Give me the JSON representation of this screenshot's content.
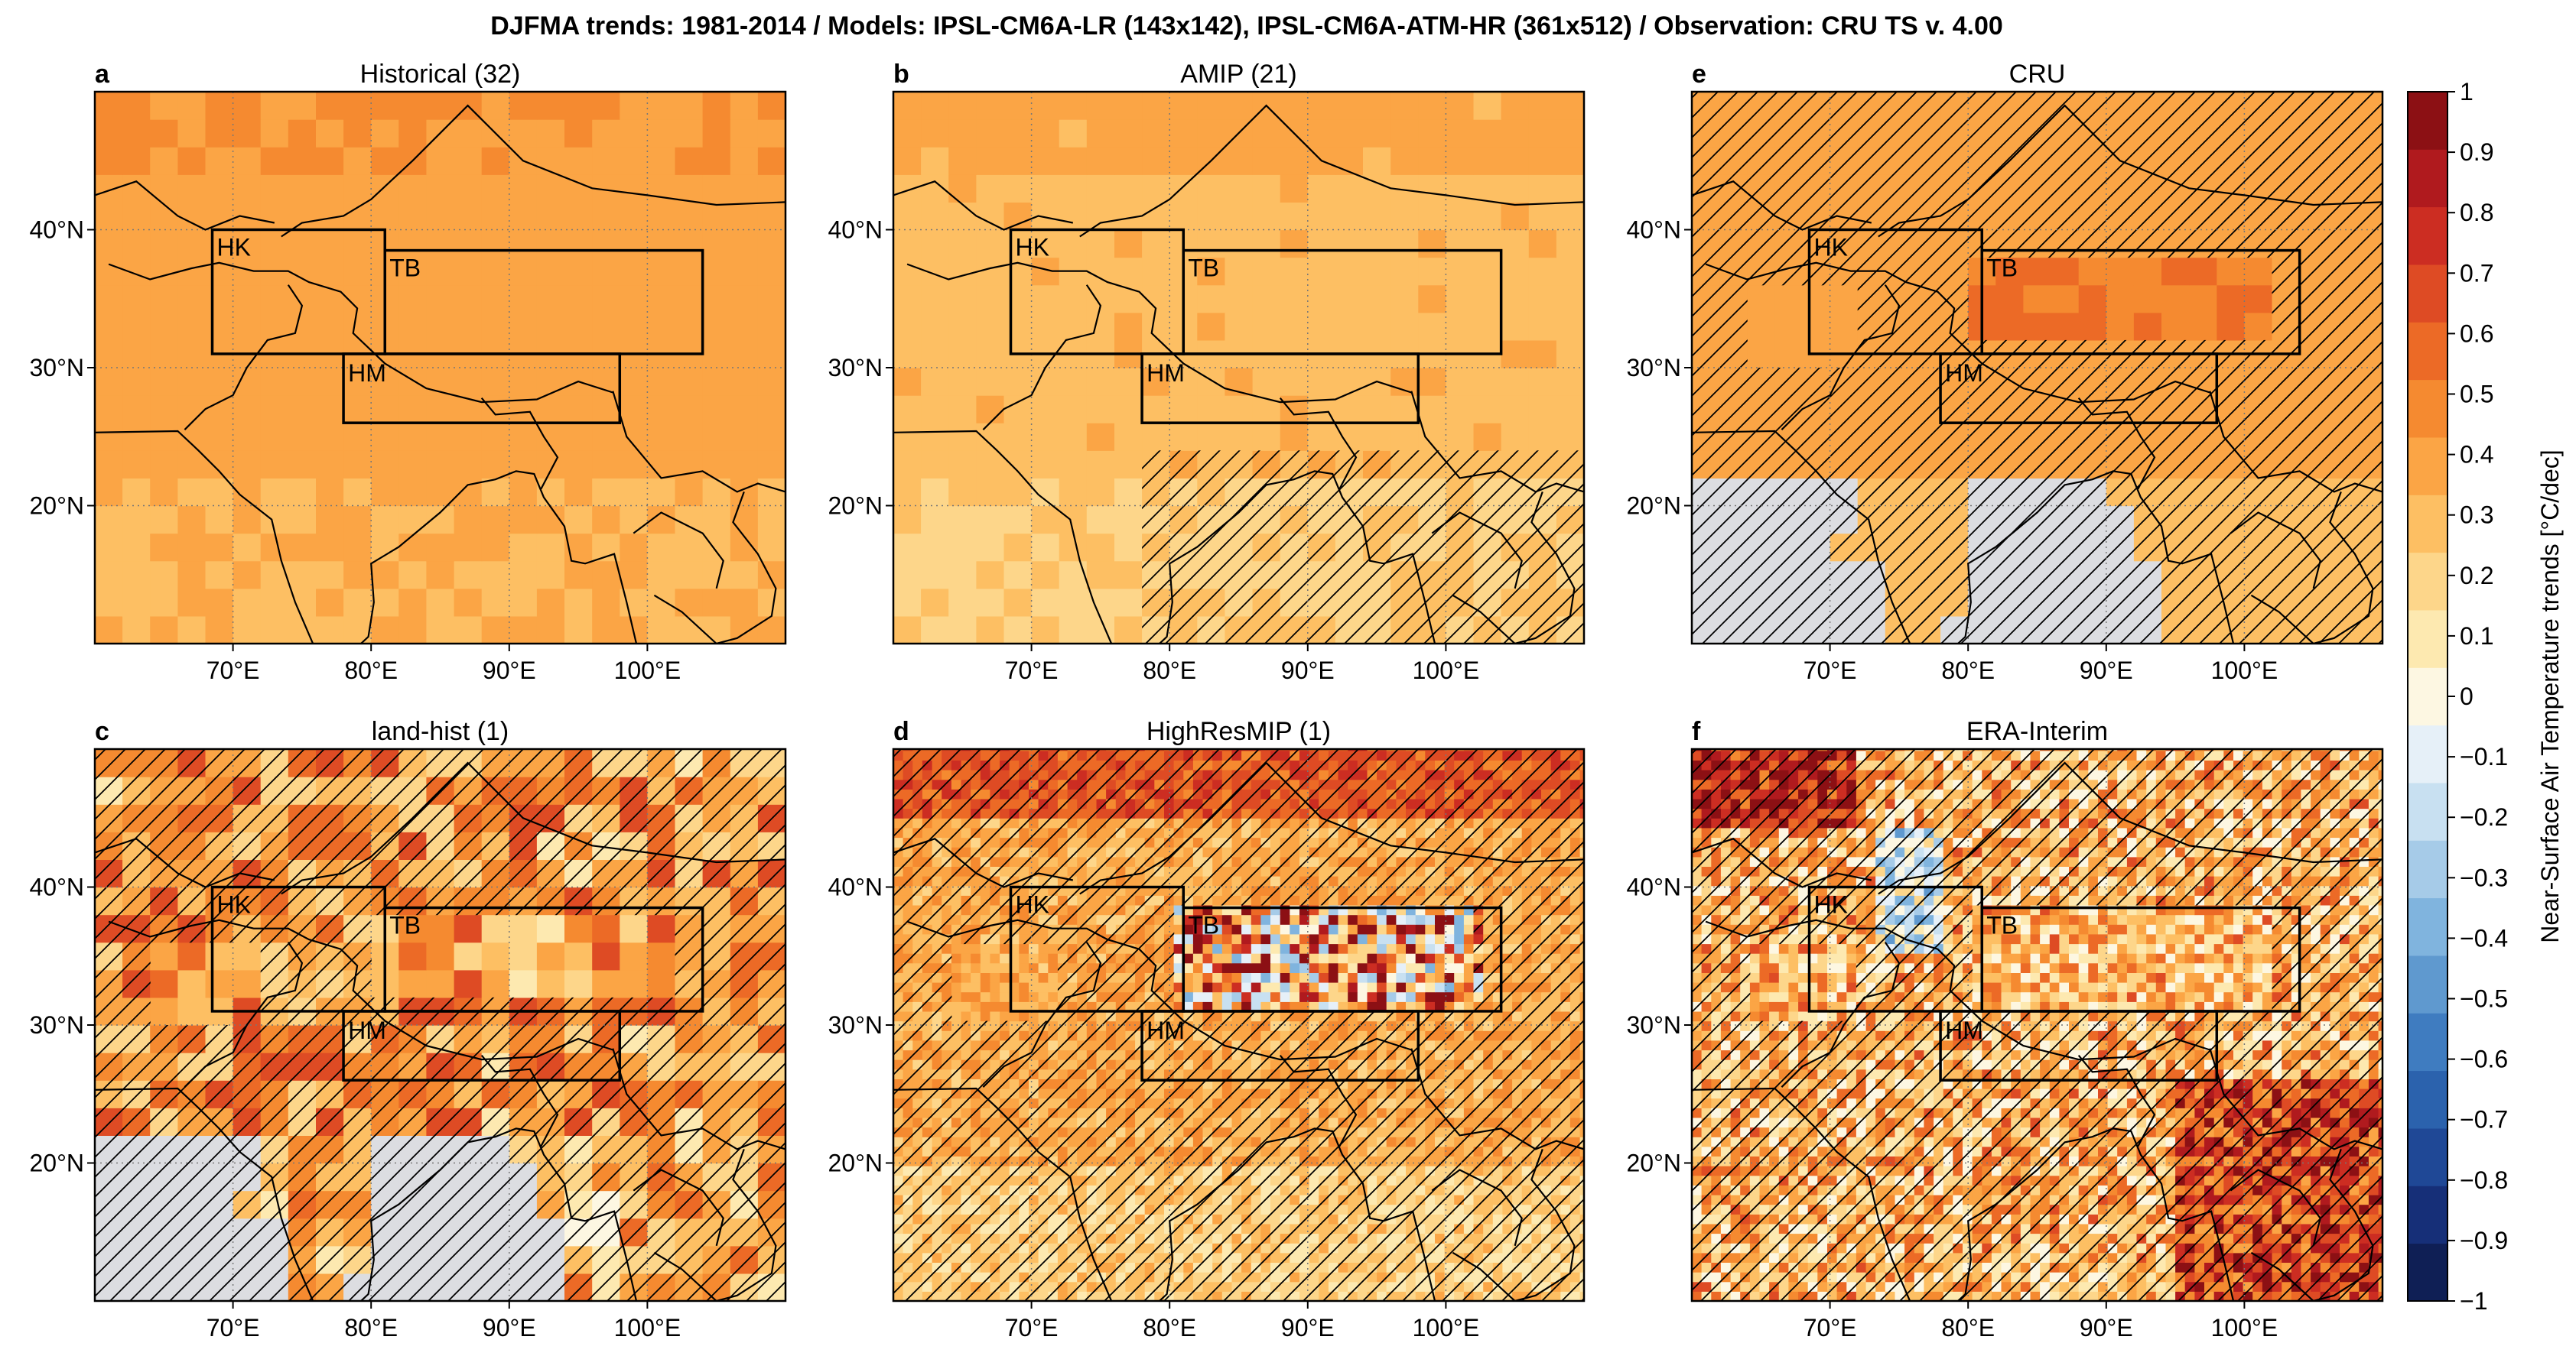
{
  "figure": {
    "suptitle": "DJFMA trends: 1981-2014 / Models: IPSL-CM6A-LR (143x142), IPSL-CM6A-ATM-HR (361x512) / Observation: CRU TS v. 4.00"
  },
  "panels": [
    {
      "letter": "a",
      "title": "Historical (32)",
      "pattern": "smooth",
      "base": 0.38,
      "spread": 0.1,
      "hatch": "none",
      "masked": false
    },
    {
      "letter": "b",
      "title": "AMIP (21)",
      "pattern": "smooth",
      "base": 0.3,
      "spread": 0.14,
      "hatch": "south-east",
      "masked": false
    },
    {
      "letter": "e",
      "title": "CRU",
      "pattern": "obs",
      "base": 0.38,
      "spread": 0.16,
      "hatch": "most",
      "masked": true
    },
    {
      "letter": "c",
      "title": "land-hist (1)",
      "pattern": "noisy",
      "base": 0.4,
      "spread": 0.22,
      "hatch": "most",
      "masked": true
    },
    {
      "letter": "d",
      "title": "HighResMIP (1)",
      "pattern": "highres",
      "base": 0.35,
      "spread": 0.22,
      "hatch": "most",
      "masked": false
    },
    {
      "letter": "f",
      "title": "ERA-Interim",
      "pattern": "era",
      "base": 0.3,
      "spread": 0.3,
      "hatch": "most",
      "masked": false
    }
  ],
  "map_axes": {
    "lat_ticks": [
      "20°N",
      "30°N",
      "40°N"
    ],
    "lon_ticks": [
      "70°E",
      "80°E",
      "90°E",
      "100°E"
    ],
    "lat_values": [
      20,
      30,
      40
    ],
    "lon_values": [
      70,
      80,
      90,
      100
    ],
    "lon_range": [
      60,
      110
    ],
    "lat_range": [
      10,
      50
    ]
  },
  "regions": [
    {
      "label": "HK",
      "lon": [
        68.5,
        81
      ],
      "lat": [
        31,
        40
      ]
    },
    {
      "label": "TB",
      "lon": [
        81,
        104
      ],
      "lat": [
        31,
        38.5
      ]
    },
    {
      "label": "HM",
      "lon": [
        78,
        98
      ],
      "lat": [
        26,
        31
      ]
    }
  ],
  "colorbar": {
    "label": "Near-Surface Air Temperature trends [°C/dec]",
    "tick_labels": [
      "1",
      "0.9",
      "0.8",
      "0.7",
      "0.6",
      "0.5",
      "0.4",
      "0.3",
      "0.2",
      "0.1",
      "0",
      "−0.1",
      "−0.2",
      "−0.3",
      "−0.4",
      "−0.5",
      "−0.6",
      "−0.7",
      "−0.8",
      "−0.9",
      "−1"
    ],
    "range": [
      -1,
      1
    ],
    "colors": [
      "#0f1f55",
      "#162f78",
      "#1f4896",
      "#2b62ad",
      "#3f7cc0",
      "#5f99cf",
      "#80b4de",
      "#a6cbe8",
      "#c8e0f1",
      "#e6f0f8",
      "#fdf7e2",
      "#fde9b0",
      "#fdd68a",
      "#fdbf63",
      "#fba545",
      "#f58a30",
      "#ec6a26",
      "#de4b24",
      "#cc2d22",
      "#b01a1e",
      "#8c1014"
    ]
  }
}
